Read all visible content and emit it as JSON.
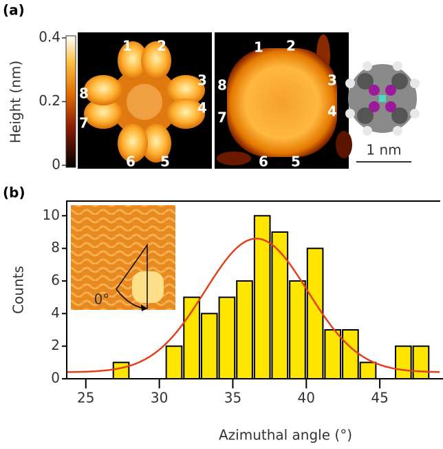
{
  "chart_data": [
    {
      "type": "colorbar",
      "panel_label": "(a)",
      "ylabel": "Height (nm)",
      "ylim": [
        0,
        0.4
      ],
      "yticks": [
        0,
        0.2,
        0.4
      ],
      "image_labels": [
        [
          "1",
          "2",
          "3",
          "4",
          "5",
          "6",
          "7",
          "8"
        ],
        [
          "1",
          "2",
          "3",
          "4",
          "5",
          "6",
          "7",
          "8"
        ]
      ],
      "scale_bar_label": "1 nm"
    },
    {
      "type": "histogram",
      "panel_label": "(b)",
      "xlabel": "Azimuthal angle (°)",
      "ylabel": "Counts",
      "inset_label": "0°",
      "bins": [
        26.8,
        28,
        29.2,
        30.4,
        31.6,
        32.8,
        34,
        35.2,
        36.4,
        37.6,
        38.8,
        40,
        41.2,
        42.4,
        43.6,
        44.8,
        46,
        47.2,
        48.4
      ],
      "values": [
        1,
        0,
        0,
        2,
        5,
        4,
        5,
        6,
        10,
        9,
        6,
        8,
        3,
        3,
        1,
        0,
        2,
        2
      ],
      "color": "#ffe600",
      "fit_baseline": 0.4,
      "fit_amplitude": 8.2,
      "fit_center": 36.6,
      "fit_sigma": 3.5,
      "fit_color": "#e2401c",
      "xlim": [
        23.7,
        49.3
      ],
      "xticks": [
        25,
        30,
        35,
        40,
        45
      ],
      "ylim": [
        0,
        10.9
      ],
      "yticks": [
        0,
        2,
        4,
        6,
        8,
        10
      ]
    }
  ]
}
